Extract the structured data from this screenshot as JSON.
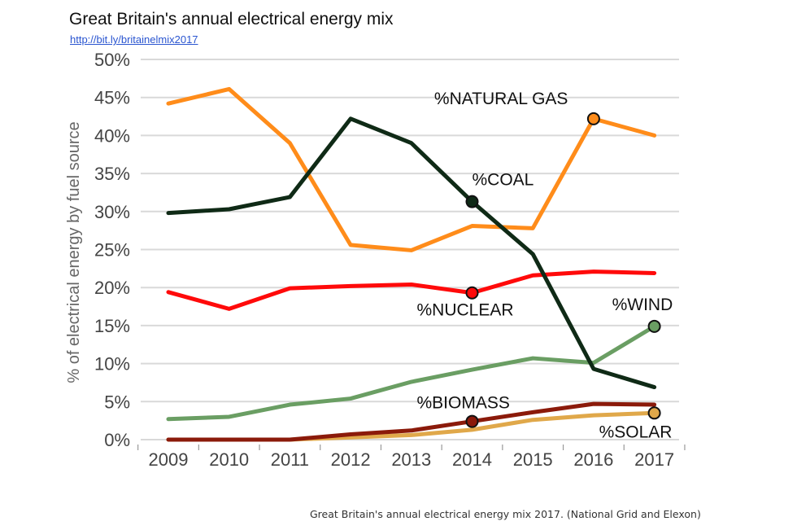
{
  "header": {
    "title": "Great Britain's annual electrical energy mix",
    "link": "http://bit.ly/britainelmix2017"
  },
  "caption": "Great Britain's annual electrical energy mix 2017. (National Grid and Elexon)",
  "chart_data": {
    "type": "line",
    "title": "Great Britain's annual electrical energy mix",
    "xlabel": "",
    "ylabel": "% of electrical energy by fuel source",
    "x": [
      "2009",
      "2010",
      "2011",
      "2012",
      "2013",
      "2014",
      "2015",
      "2016",
      "2017"
    ],
    "ylim": [
      0,
      50
    ],
    "yticks": [
      "0%",
      "5%",
      "10%",
      "15%",
      "20%",
      "25%",
      "30%",
      "35%",
      "40%",
      "45%",
      "50%"
    ],
    "grid": true,
    "legend": "inline-annotations",
    "series": [
      {
        "name": "%NATURAL GAS",
        "color": "#ff8c1a",
        "values": [
          44.2,
          46.1,
          39.0,
          25.6,
          24.9,
          28.1,
          27.8,
          42.2,
          40.0
        ],
        "marker_index": 7,
        "label_pos": "above-left"
      },
      {
        "name": "%COAL",
        "color": "#0f2a16",
        "values": [
          29.8,
          30.3,
          31.9,
          42.2,
          39.0,
          31.3,
          24.4,
          9.3,
          6.9
        ],
        "marker_index": 5,
        "label_pos": "above-right"
      },
      {
        "name": "%NUCLEAR",
        "color": "#ff0a0a",
        "values": [
          19.4,
          17.2,
          19.9,
          20.2,
          20.4,
          19.3,
          21.6,
          22.1,
          21.9
        ],
        "marker_index": 5,
        "label_pos": "below"
      },
      {
        "name": "%WIND",
        "color": "#6a9e63",
        "values": [
          2.7,
          3.0,
          4.6,
          5.4,
          7.6,
          9.2,
          10.7,
          10.1,
          14.9
        ],
        "marker_index": 8,
        "label_pos": "above"
      },
      {
        "name": "%BIOMASS",
        "color": "#8b1a0a",
        "values": [
          0,
          0,
          0,
          0.7,
          1.2,
          2.4,
          3.6,
          4.7,
          4.6
        ],
        "marker_index": 5,
        "label_pos": "above"
      },
      {
        "name": "%SOLAR",
        "color": "#e0a84a",
        "values": [
          0,
          0,
          0,
          0.3,
          0.6,
          1.3,
          2.6,
          3.2,
          3.5
        ],
        "marker_index": 8,
        "label_pos": "below"
      }
    ]
  }
}
